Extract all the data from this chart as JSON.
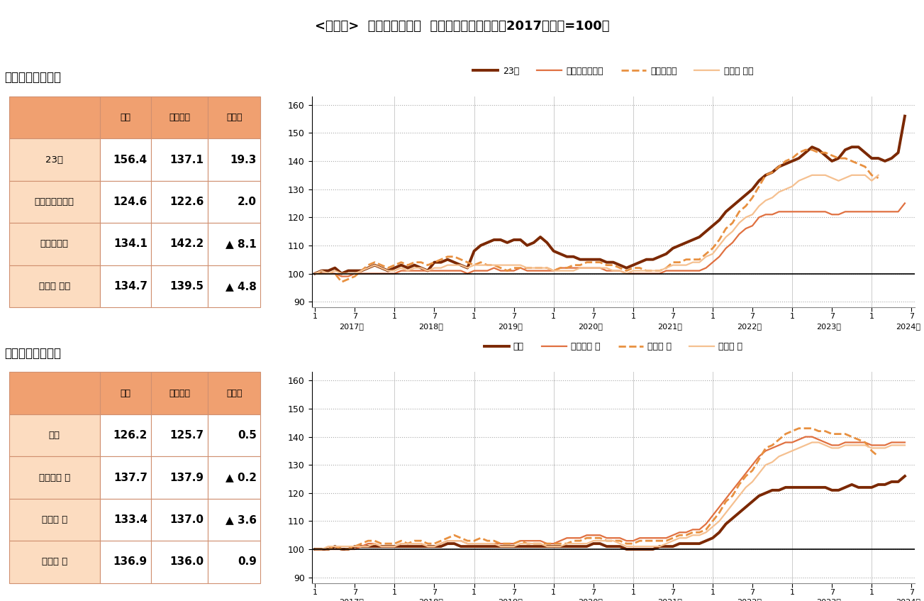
{
  "title": "<図表２>  首都圈８エリア  平均価格指数の推移（2017年１月=100）",
  "title_fontsize": 13,
  "background_color": "#ffffff",
  "table1_title": "『中心４エリア』",
  "table1_headers": [
    "",
    "当月",
    "前年同月",
    "前年差"
  ],
  "table1_rows": [
    [
      "23区",
      "156.4",
      "137.1",
      "19.3"
    ],
    [
      "横浜市・川崎市",
      "124.6",
      "122.6",
      "2.0"
    ],
    [
      "さいたま市",
      "134.1",
      "142.2",
      "▲ 8.1"
    ],
    [
      "千葉県 西部",
      "134.7",
      "139.5",
      "▲ 4.8"
    ]
  ],
  "table2_title": "『周辺４エリア』",
  "table2_headers": [
    "",
    "当月",
    "前年同月",
    "前年差"
  ],
  "table2_rows": [
    [
      "都下",
      "126.2",
      "125.7",
      "0.5"
    ],
    [
      "神奈川県 他",
      "137.7",
      "137.9",
      "▲ 0.2"
    ],
    [
      "埼玉県 他",
      "133.4",
      "137.0",
      "▲ 3.6"
    ],
    [
      "千葉県 他",
      "136.9",
      "136.0",
      "0.9"
    ]
  ],
  "chart1_labels": [
    "23区",
    "横浜市・川崎市",
    "さいたま市",
    "千葉県 西部"
  ],
  "chart2_labels": [
    "都下",
    "神奈川県 他",
    "埼玉県 他",
    "千葉県 他"
  ],
  "colors": {
    "23区": "#7B2800",
    "横浜市・川崎市": "#E07040",
    "さいたま市": "#E89040",
    "千葉県 西部": "#F5C090",
    "都下": "#7B2800",
    "神奈川県 他": "#E07040",
    "埼玉県 他": "#E89040",
    "千葉県 他": "#F5C090"
  },
  "linestyles": {
    "23区": "-",
    "横浜市・川崎市": "-",
    "さいたま市": "--",
    "千葉県 西部": "-",
    "都下": "-",
    "神奈川県 他": "-",
    "埼玉県 他": "--",
    "千葉県 他": "-"
  },
  "linewidths": {
    "23区": 2.8,
    "横浜市・川崎市": 1.6,
    "さいたま市": 2.0,
    "千葉県 西部": 1.6,
    "都下": 2.8,
    "神奈川県 他": 1.6,
    "埼玉県 他": 2.0,
    "千葉県 他": 1.6
  },
  "table_header_bg": "#F0A070",
  "table_row_bg": "#FCDCC0",
  "table_border": "#D09070",
  "ylim": [
    88,
    163
  ],
  "yticks": [
    90,
    100,
    110,
    120,
    130,
    140,
    150,
    160
  ],
  "hline_y": 100,
  "chart1_data": {
    "23区": [
      100,
      101,
      101,
      102,
      100,
      101,
      101,
      101,
      102,
      103,
      102,
      101,
      102,
      103,
      102,
      103,
      102,
      101,
      104,
      104,
      105,
      104,
      103,
      102,
      108,
      110,
      111,
      112,
      112,
      111,
      112,
      112,
      110,
      111,
      113,
      111,
      108,
      107,
      106,
      106,
      105,
      105,
      105,
      105,
      104,
      104,
      103,
      102,
      103,
      104,
      105,
      105,
      106,
      107,
      109,
      110,
      111,
      112,
      113,
      115,
      117,
      119,
      122,
      124,
      126,
      128,
      130,
      133,
      135,
      136,
      138,
      139,
      140,
      141,
      143,
      145,
      144,
      142,
      140,
      141,
      144,
      145,
      145,
      143,
      141,
      141,
      140,
      141,
      143,
      156
    ],
    "横浜市・川崎市": [
      100,
      100,
      100,
      100,
      99,
      99,
      100,
      100,
      100,
      100,
      100,
      100,
      100,
      101,
      101,
      101,
      101,
      101,
      101,
      101,
      101,
      101,
      101,
      100,
      101,
      101,
      101,
      102,
      101,
      101,
      101,
      102,
      101,
      101,
      101,
      101,
      101,
      102,
      102,
      102,
      102,
      102,
      102,
      102,
      101,
      101,
      101,
      100,
      100,
      100,
      100,
      100,
      100,
      101,
      101,
      101,
      101,
      101,
      101,
      102,
      104,
      106,
      109,
      111,
      114,
      116,
      117,
      120,
      121,
      121,
      122,
      122,
      122,
      122,
      122,
      122,
      122,
      122,
      121,
      121,
      122,
      122,
      122,
      122,
      122,
      122,
      122,
      122,
      122,
      125
    ],
    "さいたま市": [
      100,
      100,
      100,
      100,
      97,
      98,
      99,
      101,
      103,
      104,
      103,
      102,
      103,
      104,
      103,
      104,
      104,
      103,
      104,
      105,
      106,
      106,
      105,
      104,
      103,
      104,
      103,
      103,
      102,
      101,
      102,
      102,
      102,
      102,
      102,
      102,
      101,
      102,
      102,
      103,
      103,
      104,
      104,
      104,
      103,
      103,
      102,
      101,
      102,
      102,
      101,
      101,
      101,
      102,
      104,
      104,
      105,
      105,
      105,
      107,
      109,
      112,
      116,
      118,
      122,
      124,
      127,
      131,
      135,
      136,
      138,
      140,
      141,
      143,
      144,
      144,
      143,
      143,
      142,
      141,
      141,
      140,
      139,
      138,
      135,
      134
    ],
    "千葉県 西部": [
      100,
      101,
      100,
      101,
      100,
      100,
      100,
      101,
      102,
      103,
      102,
      101,
      101,
      102,
      101,
      102,
      102,
      101,
      102,
      102,
      103,
      103,
      103,
      102,
      103,
      103,
      103,
      103,
      103,
      103,
      103,
      103,
      102,
      102,
      102,
      102,
      101,
      101,
      101,
      101,
      102,
      102,
      102,
      102,
      102,
      101,
      101,
      100,
      101,
      101,
      101,
      101,
      101,
      102,
      103,
      103,
      103,
      104,
      104,
      106,
      107,
      110,
      113,
      115,
      118,
      120,
      121,
      124,
      126,
      127,
      129,
      130,
      131,
      133,
      134,
      135,
      135,
      135,
      134,
      133,
      134,
      135,
      135,
      135,
      133,
      135
    ]
  },
  "chart2_data": {
    "都下": [
      100,
      100,
      100,
      101,
      100,
      100,
      101,
      101,
      101,
      101,
      101,
      101,
      101,
      101,
      101,
      101,
      101,
      101,
      101,
      101,
      102,
      102,
      101,
      101,
      101,
      101,
      101,
      101,
      101,
      101,
      101,
      101,
      101,
      101,
      101,
      101,
      101,
      101,
      101,
      101,
      101,
      101,
      102,
      102,
      101,
      101,
      101,
      100,
      100,
      100,
      100,
      100,
      101,
      101,
      101,
      102,
      102,
      102,
      102,
      103,
      104,
      106,
      109,
      111,
      113,
      115,
      117,
      119,
      120,
      121,
      121,
      122,
      122,
      122,
      122,
      122,
      122,
      122,
      121,
      121,
      122,
      123,
      122,
      122,
      122,
      123,
      123,
      124,
      124,
      126
    ],
    "神奈川県 他": [
      100,
      100,
      100,
      100,
      100,
      100,
      100,
      101,
      102,
      102,
      101,
      101,
      101,
      102,
      102,
      102,
      102,
      101,
      101,
      102,
      103,
      103,
      103,
      102,
      102,
      102,
      102,
      102,
      102,
      102,
      102,
      103,
      103,
      103,
      103,
      102,
      102,
      103,
      104,
      104,
      104,
      105,
      105,
      105,
      104,
      104,
      104,
      103,
      103,
      104,
      104,
      104,
      104,
      104,
      105,
      106,
      106,
      107,
      107,
      109,
      112,
      115,
      118,
      121,
      124,
      127,
      130,
      133,
      135,
      136,
      137,
      138,
      138,
      139,
      140,
      140,
      139,
      138,
      137,
      137,
      138,
      138,
      138,
      138,
      137,
      137,
      137,
      138,
      138,
      138
    ],
    "埼玉県 他": [
      100,
      100,
      100,
      101,
      100,
      100,
      101,
      102,
      103,
      103,
      102,
      102,
      102,
      103,
      102,
      103,
      103,
      102,
      102,
      103,
      104,
      105,
      104,
      103,
      103,
      104,
      103,
      103,
      102,
      102,
      102,
      103,
      102,
      102,
      102,
      102,
      102,
      102,
      102,
      103,
      103,
      104,
      104,
      104,
      103,
      103,
      103,
      102,
      102,
      103,
      103,
      103,
      103,
      103,
      104,
      105,
      105,
      106,
      106,
      107,
      110,
      113,
      117,
      119,
      123,
      126,
      128,
      132,
      136,
      137,
      139,
      141,
      142,
      143,
      143,
      143,
      142,
      142,
      141,
      141,
      141,
      140,
      139,
      138,
      135,
      133
    ],
    "千葉県 他": [
      100,
      100,
      101,
      101,
      101,
      101,
      101,
      101,
      101,
      102,
      101,
      101,
      101,
      102,
      102,
      102,
      102,
      101,
      101,
      102,
      103,
      103,
      103,
      102,
      102,
      102,
      102,
      102,
      101,
      101,
      101,
      102,
      102,
      102,
      102,
      101,
      101,
      101,
      102,
      102,
      102,
      102,
      103,
      103,
      103,
      103,
      102,
      101,
      101,
      101,
      101,
      101,
      101,
      102,
      103,
      104,
      104,
      105,
      105,
      106,
      108,
      110,
      113,
      116,
      119,
      122,
      124,
      127,
      130,
      131,
      133,
      134,
      135,
      136,
      137,
      138,
      138,
      137,
      136,
      136,
      137,
      137,
      137,
      137,
      136,
      136,
      136,
      137,
      137,
      137
    ]
  }
}
